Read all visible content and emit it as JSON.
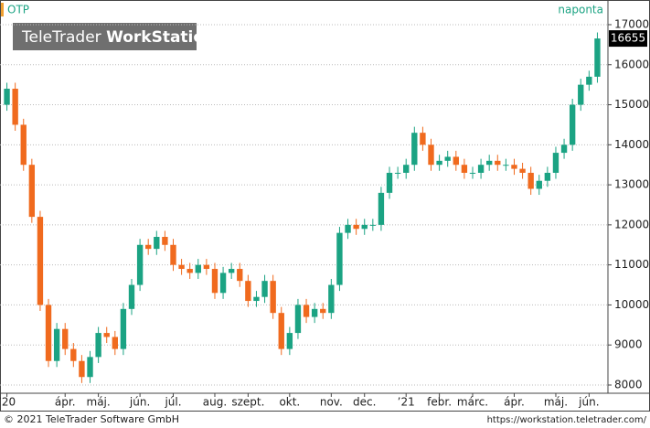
{
  "chart_data": {
    "type": "candlestick",
    "title": "OTP",
    "interval": "naponta",
    "categories": [
      "’20",
      null,
      null,
      null,
      null,
      null,
      null,
      "ápr.",
      null,
      null,
      null,
      "máj.",
      null,
      null,
      null,
      null,
      "jún.",
      null,
      null,
      null,
      "júl.",
      null,
      null,
      null,
      null,
      "aug.",
      null,
      null,
      null,
      "szept.",
      null,
      null,
      null,
      null,
      "okt.",
      null,
      null,
      null,
      null,
      "nov.",
      null,
      null,
      null,
      "dec.",
      null,
      null,
      null,
      null,
      "’21",
      null,
      null,
      null,
      "febr.",
      null,
      null,
      null,
      "márc.",
      null,
      null,
      null,
      null,
      "ápr.",
      null,
      null,
      null,
      null,
      "máj.",
      null,
      null,
      null,
      "jún.",
      null
    ],
    "open": [
      15000,
      15400,
      14500,
      13500,
      12200,
      10000,
      8600,
      9400,
      8900,
      8600,
      8200,
      8700,
      9300,
      9200,
      8900,
      9900,
      10500,
      11500,
      11400,
      11700,
      11500,
      11000,
      10900,
      10800,
      11000,
      10900,
      10300,
      10800,
      10900,
      10600,
      10100,
      10200,
      10600,
      9800,
      8900,
      9300,
      10000,
      9700,
      9900,
      9800,
      10500,
      11800,
      12000,
      11900,
      12000,
      12000,
      12800,
      13300,
      13300,
      13500,
      14300,
      14000,
      13500,
      13600,
      13700,
      13500,
      13300,
      13300,
      13500,
      13600,
      13500,
      13500,
      13400,
      13300,
      12900,
      13100,
      13300,
      13800,
      14000,
      15000,
      15500,
      15700
    ],
    "high": [
      15550,
      15550,
      14650,
      13650,
      12350,
      10150,
      9550,
      9550,
      9050,
      8750,
      8850,
      9450,
      9450,
      9350,
      10050,
      10650,
      11650,
      11650,
      11850,
      11850,
      11650,
      11150,
      11050,
      11150,
      11150,
      11050,
      10950,
      11050,
      11050,
      10750,
      10350,
      10750,
      10750,
      9950,
      9450,
      10150,
      10150,
      10050,
      10050,
      10650,
      11950,
      12150,
      12150,
      12150,
      12150,
      12950,
      13450,
      13450,
      13650,
      14450,
      14450,
      14150,
      13750,
      13850,
      13850,
      13650,
      13450,
      13650,
      13750,
      13750,
      13650,
      13650,
      13550,
      13450,
      13250,
      13450,
      13950,
      14150,
      15150,
      15650,
      15850,
      16805
    ],
    "low": [
      14850,
      14350,
      13350,
      12050,
      9850,
      8450,
      8450,
      8750,
      8450,
      8050,
      8050,
      8550,
      9050,
      8750,
      8750,
      9750,
      10350,
      11250,
      11250,
      11350,
      10850,
      10750,
      10650,
      10650,
      10750,
      10150,
      10150,
      10650,
      10450,
      9950,
      9950,
      10050,
      9650,
      8750,
      8750,
      9150,
      9550,
      9550,
      9650,
      9650,
      10350,
      11650,
      11750,
      11750,
      11850,
      11850,
      12650,
      13150,
      13150,
      13350,
      13850,
      13350,
      13350,
      13450,
      13350,
      13150,
      13150,
      13150,
      13350,
      13350,
      13350,
      13250,
      13150,
      12750,
      12750,
      12950,
      13150,
      13650,
      13850,
      14850,
      15350,
      15550
    ],
    "close": [
      15400,
      14500,
      13500,
      12200,
      10000,
      8600,
      9400,
      8900,
      8600,
      8200,
      8700,
      9300,
      9200,
      8900,
      9900,
      10500,
      11500,
      11400,
      11700,
      11500,
      11000,
      10900,
      10800,
      11000,
      10900,
      10300,
      10800,
      10900,
      10600,
      10100,
      10200,
      10600,
      9800,
      8900,
      9300,
      10000,
      9700,
      9900,
      9800,
      10500,
      11800,
      12000,
      11900,
      12000,
      12000,
      12800,
      13300,
      13300,
      13500,
      14300,
      14000,
      13500,
      13600,
      13700,
      13500,
      13300,
      13300,
      13500,
      13600,
      13500,
      13500,
      13400,
      13300,
      12900,
      13100,
      13300,
      13800,
      14000,
      15000,
      15500,
      15700,
      16655
    ],
    "last_value": 16655,
    "up_color": "#1ba383",
    "down_color": "#f06a1e",
    "ylim": [
      7840,
      17205
    ],
    "yticks": [
      8000,
      9000,
      10000,
      11000,
      12000,
      13000,
      14000,
      15000,
      16000,
      17000
    ],
    "grid": true
  },
  "watermark": {
    "brand": "TeleTrader",
    "product": "WorkStation"
  },
  "footer": {
    "copyright": "© 2021 TeleTrader Software GmbH",
    "url": "https://workstation.teletrader.com/"
  }
}
